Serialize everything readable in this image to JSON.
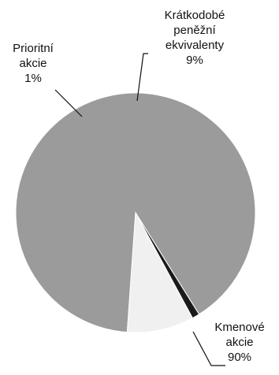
{
  "chart_data": {
    "type": "pie",
    "slices": [
      {
        "label_lines": [
          "Kmenové",
          "akcie"
        ],
        "pct_label": "90%",
        "value": 90,
        "color": "#9b9b9b"
      },
      {
        "label_lines": [
          "Prioritní",
          "akcie"
        ],
        "pct_label": "1%",
        "value": 1,
        "color": "#1a1a1a"
      },
      {
        "label_lines": [
          "Krátkodobé",
          "peněžní",
          "ekvivalenty"
        ],
        "pct_label": "9%",
        "value": 9,
        "color": "#f0f0f0"
      }
    ]
  }
}
